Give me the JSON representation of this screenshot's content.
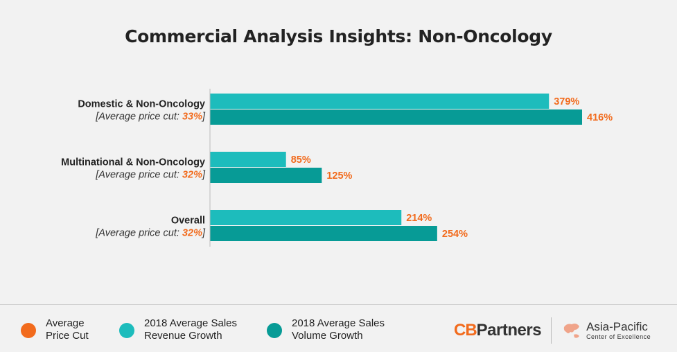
{
  "chart_data": {
    "type": "bar",
    "title": "Commercial Analysis Insights: Non-Oncology",
    "categories": [
      "Domestic & Non-Oncology",
      "Multinational & Non-Oncology",
      "Overall"
    ],
    "subcaption_prefix": "[Average price cut: ",
    "subcaption_suffix": "]",
    "price_cut": [
      "33%",
      "32%",
      "32%"
    ],
    "series": [
      {
        "name": "2018 Average Sales Revenue Growth",
        "values": [
          379,
          85,
          214
        ],
        "color": "#1dbcbc"
      },
      {
        "name": "2018 Average Sales Volume Growth",
        "values": [
          416,
          125,
          254
        ],
        "color": "#079b96"
      }
    ],
    "value_suffix": "%",
    "label_color": "#f26b1d",
    "xlim": [
      0,
      450
    ]
  },
  "legend": [
    {
      "label": "Average\nPrice Cut",
      "color": "#f26b1d"
    },
    {
      "label": "2018 Average Sales\nRevenue Growth",
      "color": "#1dbcbc"
    },
    {
      "label": "2018 Average Sales\nVolume Growth",
      "color": "#079b96"
    }
  ],
  "brand": {
    "cb": "CB",
    "partners": "Partners",
    "region": "Asia-Pacific",
    "region_sub": "Center of Excellence"
  }
}
